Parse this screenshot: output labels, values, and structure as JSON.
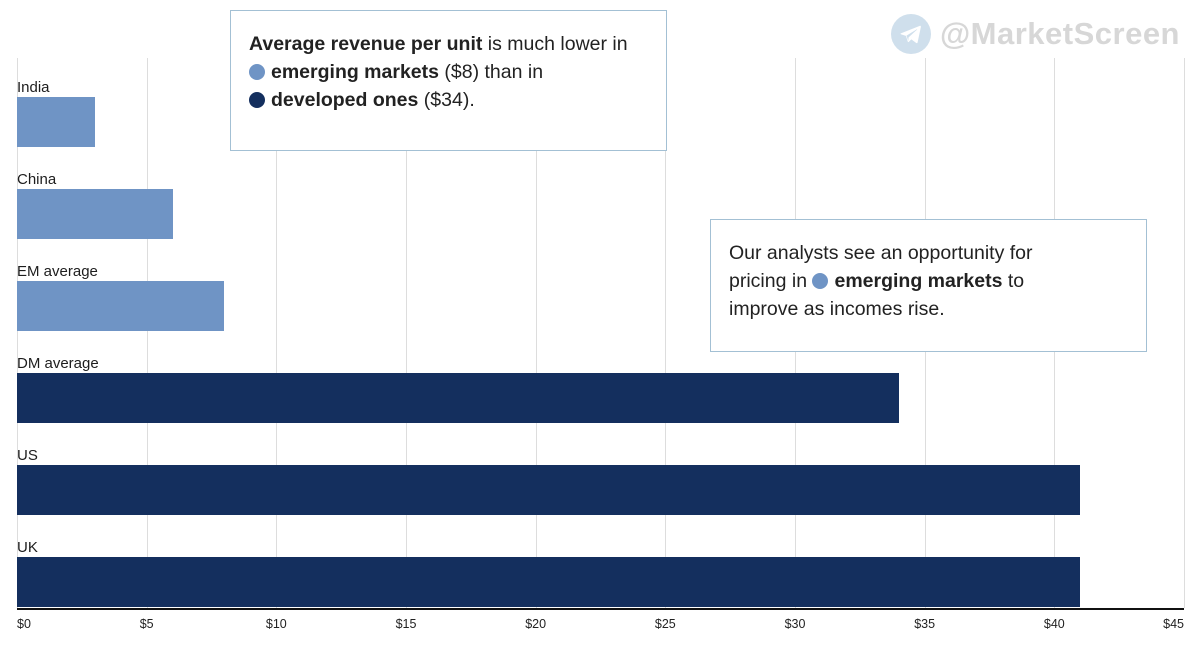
{
  "watermark": {
    "handle": "@MarketScreen",
    "icon": "telegram-icon",
    "icon_bg": "#cfdfec",
    "text_color": "#d7d7d7"
  },
  "annotations": {
    "box1": {
      "line1_bold": "Average revenue per unit",
      "line1_rest": " is much lower in",
      "line2_bold": "emerging markets",
      "line2_rest": " ($8) than in",
      "line3_bold": "developed ones",
      "line3_rest": " ($34)."
    },
    "box2": {
      "line1": "Our analysts see an opportunity for",
      "line2_pre": "pricing in ",
      "line2_bold": "emerging markets",
      "line2_rest": " to",
      "line3": "improve as incomes rise."
    }
  },
  "chart_data": {
    "type": "bar",
    "orientation": "horizontal",
    "title": "Average revenue per unit",
    "categories": [
      "India",
      "China",
      "EM average",
      "DM average",
      "US",
      "UK"
    ],
    "values": [
      3,
      6,
      8,
      34,
      41,
      41
    ],
    "groups": [
      "emerging",
      "emerging",
      "emerging",
      "developed",
      "developed",
      "developed"
    ],
    "colors": {
      "emerging": "#6f94c5",
      "developed": "#142f5e"
    },
    "xlim": [
      0,
      45
    ],
    "x_ticks": [
      "$0",
      "$5",
      "$10",
      "$15",
      "$20",
      "$25",
      "$30",
      "$35",
      "$40",
      "$45"
    ],
    "grid": true,
    "gridline_color": "#dddddd",
    "legend": "none"
  }
}
